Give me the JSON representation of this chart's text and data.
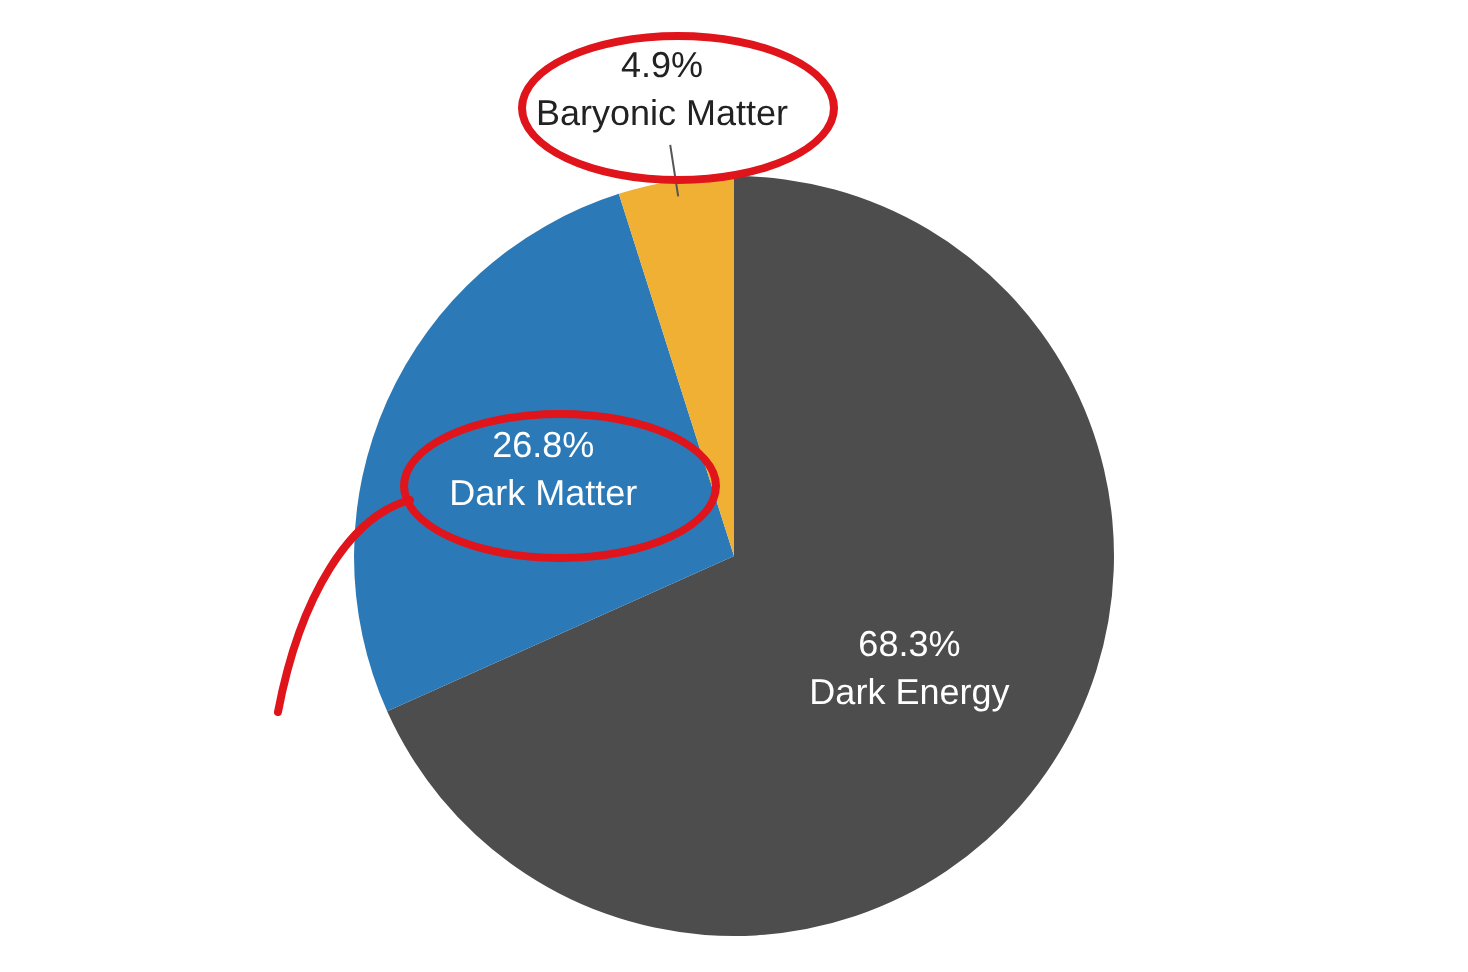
{
  "chart_data": {
    "type": "pie",
    "categories": [
      "Dark Energy",
      "Dark Matter",
      "Baryonic Matter"
    ],
    "values": [
      68.3,
      26.8,
      4.9
    ],
    "value_labels": [
      "68.3%",
      "26.8%",
      "4.9%"
    ],
    "colors": [
      "#4d4d4d",
      "#2b79b6",
      "#efb034"
    ],
    "legend": false
  }
}
